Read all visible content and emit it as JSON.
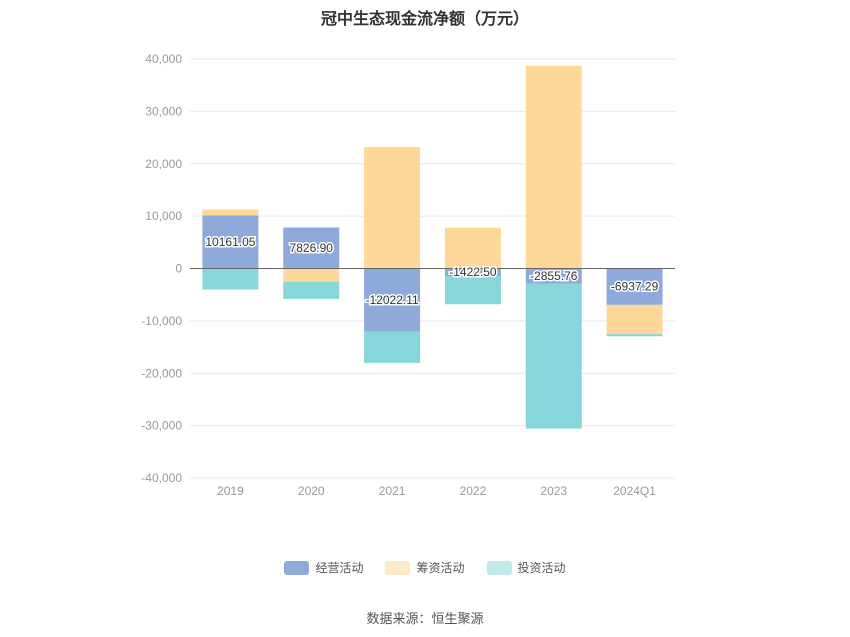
{
  "title": "冠中生态现金流净额（万元）",
  "source_text": "数据来源：恒生聚源",
  "chart_data": {
    "type": "bar",
    "stacked": true,
    "categories": [
      "2019",
      "2020",
      "2021",
      "2022",
      "2023",
      "2024Q1"
    ],
    "ylim": [
      -40000,
      40000
    ],
    "yticks": [
      40000,
      30000,
      20000,
      10000,
      0,
      -10000,
      -20000,
      -30000,
      -40000
    ],
    "ytick_labels": [
      "40,000",
      "30,000",
      "20,000",
      "10,000",
      "0",
      "-10,000",
      "-20,000",
      "-30,000",
      "-40,000"
    ],
    "grid": true,
    "legend_position": "bottom",
    "series": [
      {
        "name": "经营活动",
        "color": "#8eaadb",
        "values": [
          10161.05,
          7826.9,
          -12022.11,
          -1422.5,
          -2855.76,
          -6937.29
        ],
        "labels": [
          "10161.05",
          "7826.90",
          "-12022.11",
          "-1422.50",
          "-2855.76",
          "-6937.29"
        ]
      },
      {
        "name": "筹资活动",
        "color": "#ffd899",
        "values": [
          1100,
          -2500,
          23200,
          7800,
          38700,
          -5600
        ]
      },
      {
        "name": "投资活动",
        "color": "#87d6da",
        "values": [
          -4000,
          -3300,
          -6000,
          -5400,
          -27700,
          -400
        ]
      }
    ]
  }
}
